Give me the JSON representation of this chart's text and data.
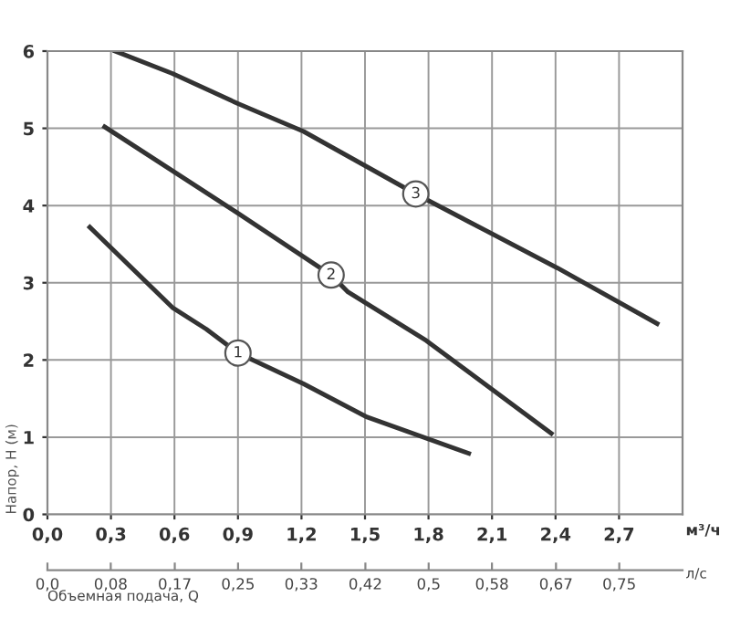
{
  "chart_data": {
    "type": "line",
    "ylabel": "Напор, H (м)",
    "xlabel": "м³/ч",
    "x2label": "л/с",
    "series": [
      {
        "color": "#333333",
        "x": [
          0.2,
          0.59,
          0.75,
          0.9,
          1.21,
          1.51,
          1.99
        ],
        "values": [
          3.72,
          2.68,
          2.4,
          2.09,
          1.69,
          1.26,
          0.79
        ]
      },
      {
        "color": "#333333",
        "x": [
          0.27,
          0.9,
          1.34,
          1.42,
          1.79,
          2.38
        ],
        "values": [
          5.02,
          3.9,
          3.1,
          2.88,
          2.25,
          1.05
        ]
      },
      {
        "color": "#333333",
        "x": [
          0.32,
          0.59,
          0.9,
          1.21,
          1.74,
          2.41,
          2.88
        ],
        "values": [
          6.0,
          5.71,
          5.32,
          4.96,
          4.15,
          3.19,
          2.47
        ]
      }
    ],
    "xlim": [
      0,
      3.0
    ],
    "ylim": [
      0,
      6
    ],
    "xticks": [
      {
        "value": 0,
        "label": "0,0"
      },
      {
        "value": 0.3,
        "label": "0,3"
      },
      {
        "value": 0.6,
        "label": "0,6"
      },
      {
        "value": 0.9,
        "label": "0,9"
      },
      {
        "value": 1.2,
        "label": "1,2"
      },
      {
        "value": 1.5,
        "label": "1,5"
      },
      {
        "value": 1.8,
        "label": "1,8"
      },
      {
        "value": 2.1,
        "label": "2,1"
      },
      {
        "value": 2.4,
        "label": "2,4"
      },
      {
        "value": 2.7,
        "label": "2,7"
      }
    ],
    "yticks": [
      0,
      1,
      2,
      3,
      4,
      5,
      6
    ],
    "x2lim": [
      0,
      0.833
    ],
    "x2ticks": [
      {
        "value": 0,
        "label": "0,0"
      },
      {
        "value": 0.083,
        "label": "0,08"
      },
      {
        "value": 0.167,
        "label": "0,17"
      },
      {
        "value": 0.25,
        "label": "0,25"
      },
      {
        "value": 0.333,
        "label": "0,33"
      },
      {
        "value": 0.417,
        "label": "0,42"
      },
      {
        "value": 0.5,
        "label": "0,5"
      },
      {
        "value": 0.583,
        "label": "0,58"
      },
      {
        "value": 0.667,
        "label": "0,67"
      },
      {
        "value": 0.75,
        "label": "0,75"
      }
    ],
    "annotations": [
      {
        "text": "1",
        "x": 0.9,
        "y": 2.09
      },
      {
        "text": "2",
        "x": 1.34,
        "y": 3.1
      },
      {
        "text": "3",
        "x": 1.74,
        "y": 4.15
      },
      "Объемная подача, Q"
    ],
    "grid": true,
    "marker": "none",
    "line_style": "solid"
  }
}
